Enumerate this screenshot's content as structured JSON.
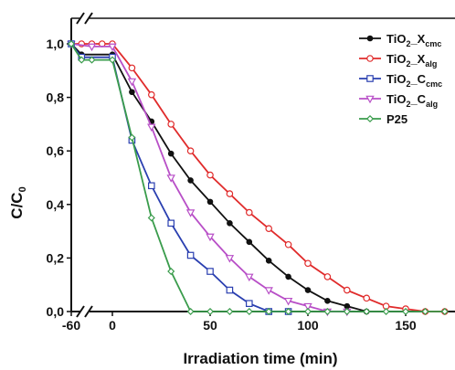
{
  "chart_data": {
    "type": "line",
    "xlabel": "Irradiation time (min)",
    "ylabel": "C/C0",
    "ylabel_main": "C/C",
    "ylabel_sub": "0",
    "xlim": [
      -60,
      175
    ],
    "ylim": [
      0,
      1.0
    ],
    "x_axis_break": true,
    "grid": false,
    "legend_position": "top-right",
    "xtick_labels": [
      "-60",
      "0",
      "50",
      "100",
      "150"
    ],
    "xtick_values": [
      -60,
      0,
      50,
      100,
      150
    ],
    "ytick_labels": [
      "0,0",
      "0,2",
      "0,4",
      "0,6",
      "0,8",
      "1,0"
    ],
    "ytick_values": [
      0,
      0.2,
      0.4,
      0.6,
      0.8,
      1.0
    ],
    "series": [
      {
        "name": "TiO2_Xcmc",
        "legend_main": "TiO",
        "legend_sub1": "2",
        "legend_mid": "_X",
        "legend_sub2": "cmc",
        "color": "#111111",
        "marker": "circle",
        "x": [
          -60,
          -45,
          0,
          10,
          20,
          30,
          40,
          50,
          60,
          70,
          80,
          90,
          100,
          110,
          120,
          130
        ],
        "y": [
          1.0,
          0.96,
          0.96,
          0.82,
          0.71,
          0.59,
          0.49,
          0.41,
          0.33,
          0.26,
          0.19,
          0.13,
          0.08,
          0.04,
          0.02,
          0.0
        ]
      },
      {
        "name": "TiO2_Xalg",
        "legend_main": "TiO",
        "legend_sub1": "2",
        "legend_mid": "_X",
        "legend_sub2": "alg",
        "color": "#e02b2b",
        "marker": "circle-open",
        "x": [
          -60,
          -45,
          -30,
          -15,
          0,
          10,
          20,
          30,
          40,
          50,
          60,
          70,
          80,
          90,
          100,
          110,
          120,
          130,
          140,
          150,
          160,
          170
        ],
        "y": [
          1.0,
          1.0,
          1.0,
          1.0,
          1.0,
          0.91,
          0.81,
          0.7,
          0.6,
          0.51,
          0.44,
          0.37,
          0.31,
          0.25,
          0.18,
          0.13,
          0.08,
          0.05,
          0.02,
          0.01,
          0.0,
          0.0
        ]
      },
      {
        "name": "TiO2_Ccmc",
        "legend_main": "TiO",
        "legend_sub1": "2",
        "legend_mid": "_C",
        "legend_sub2": "cmc",
        "color": "#2a3fb0",
        "marker": "square-open",
        "x": [
          -60,
          -45,
          0,
          10,
          20,
          30,
          40,
          50,
          60,
          70,
          80,
          90
        ],
        "y": [
          1.0,
          0.95,
          0.95,
          0.64,
          0.47,
          0.33,
          0.21,
          0.15,
          0.08,
          0.03,
          0.0,
          0.0
        ]
      },
      {
        "name": "TiO2_Calg",
        "legend_main": "TiO",
        "legend_sub1": "2",
        "legend_mid": "_C",
        "legend_sub2": "alg",
        "color": "#b84fc7",
        "marker": "triangle-down-open",
        "x": [
          -60,
          -30,
          0,
          10,
          20,
          30,
          40,
          50,
          60,
          70,
          80,
          90,
          100,
          110,
          120
        ],
        "y": [
          1.0,
          0.99,
          0.99,
          0.86,
          0.69,
          0.5,
          0.37,
          0.28,
          0.2,
          0.13,
          0.08,
          0.04,
          0.02,
          0.0,
          0.0
        ]
      },
      {
        "name": "P25",
        "legend_main": "P25",
        "legend_sub1": "",
        "legend_mid": "",
        "legend_sub2": "",
        "color": "#3a9c4c",
        "marker": "diamond-open",
        "x": [
          -60,
          -45,
          -30,
          0,
          10,
          20,
          30,
          40,
          50,
          60,
          70,
          80,
          90,
          100,
          110,
          120,
          130,
          140,
          150,
          160,
          170
        ],
        "y": [
          1.0,
          0.94,
          0.94,
          0.94,
          0.65,
          0.35,
          0.15,
          0.0,
          0.0,
          0.0,
          0.0,
          0.0,
          0.0,
          0.0,
          0.0,
          0.0,
          0.0,
          0.0,
          0.0,
          0.0,
          0.0
        ]
      }
    ]
  }
}
